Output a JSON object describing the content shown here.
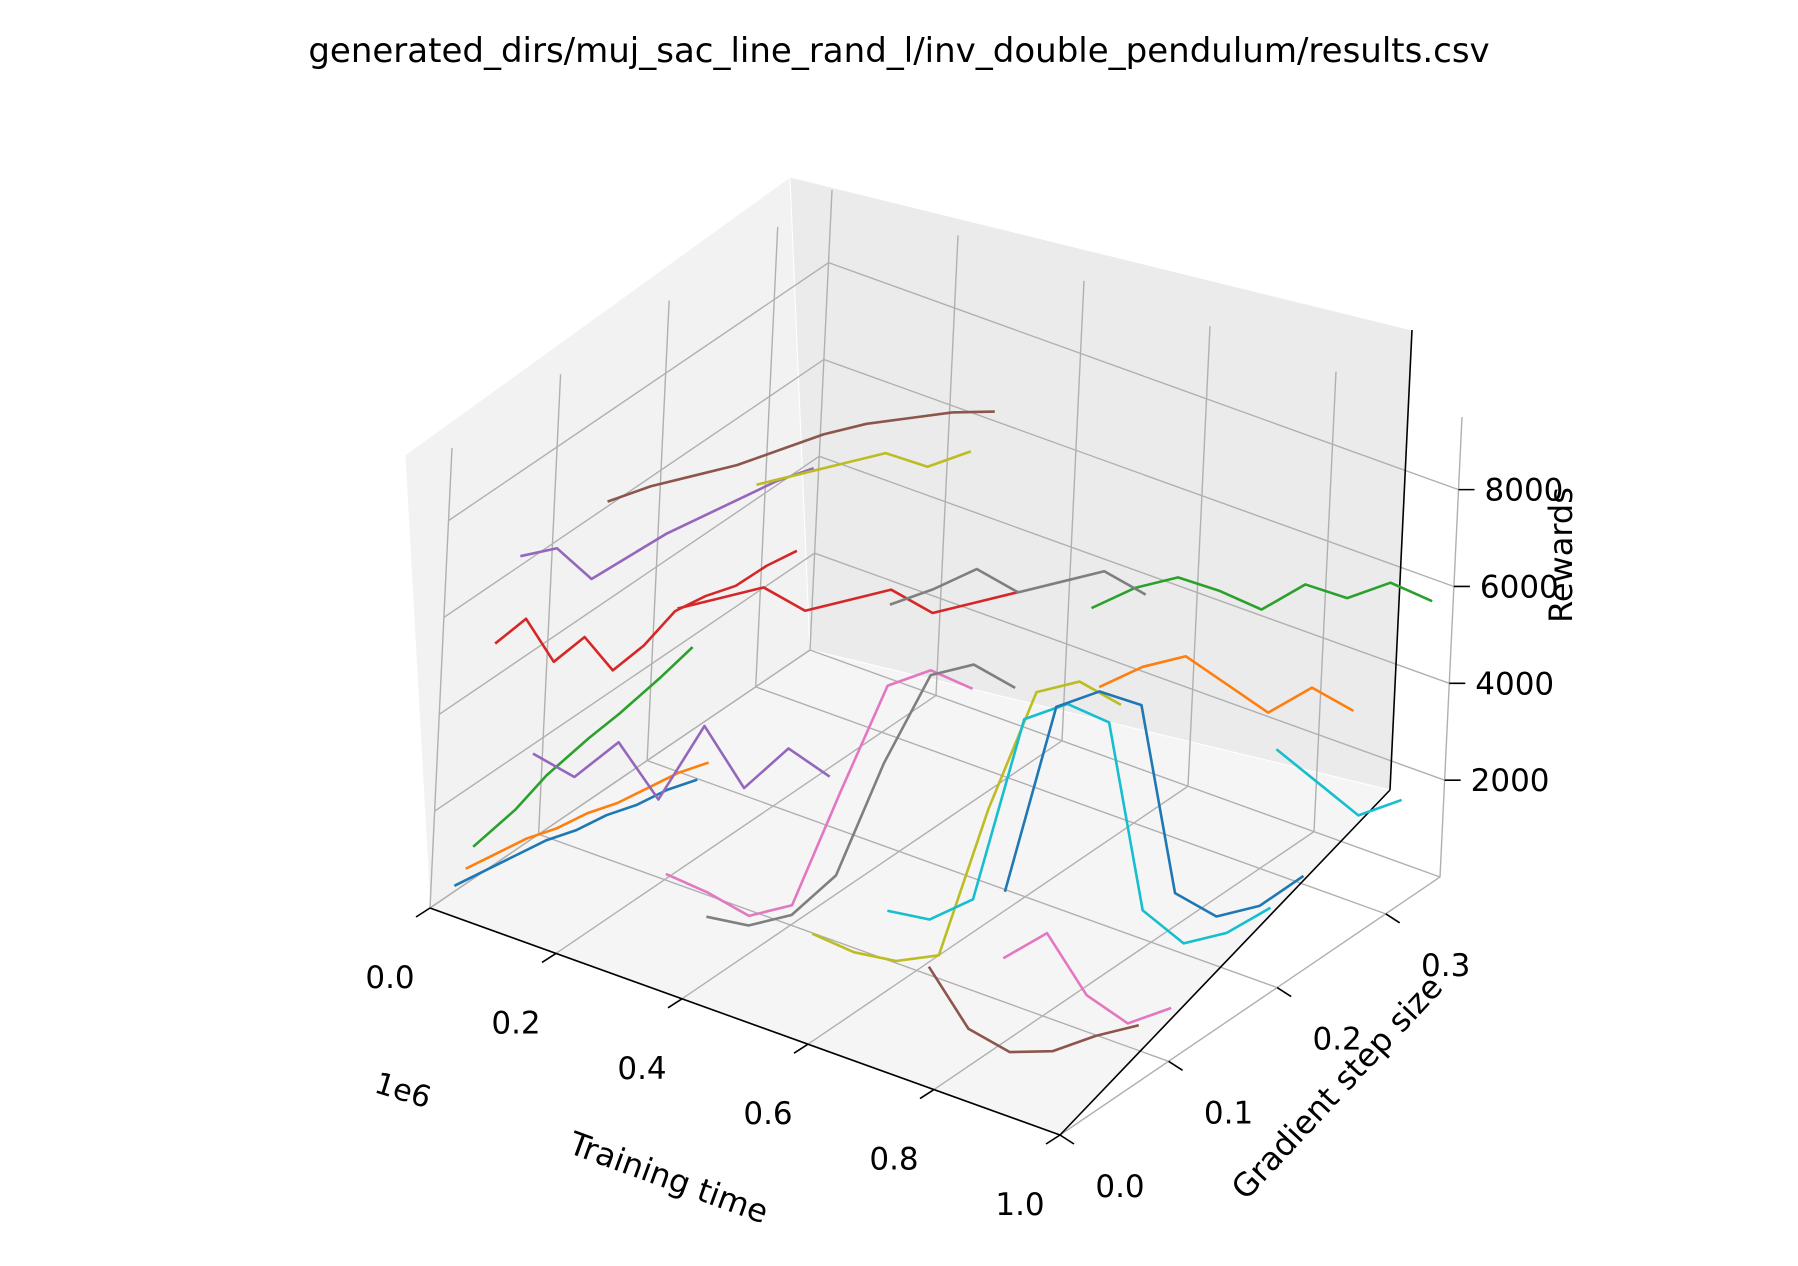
{
  "chart_data": {
    "type": "line3d",
    "title": "generated_dirs/muj_sac_line_rand_l/inv_double_pendulum/results.csv",
    "xlabel": "Training time",
    "ylabel": "Gradient step size",
    "zlabel": "Rewards",
    "x_offset_label": "1e6",
    "x_ticks": [
      "0.0",
      "0.2",
      "0.4",
      "0.6",
      "0.8",
      "1.0"
    ],
    "y_ticks": [
      "0.0",
      "0.1",
      "0.2",
      "0.3"
    ],
    "z_ticks": [
      "2000",
      "4000",
      "6000",
      "8000"
    ],
    "xlim": [
      0,
      1.0
    ],
    "ylim": [
      0,
      0.35
    ],
    "zlim": [
      0,
      9500
    ],
    "grid": true,
    "colors": [
      "#1f77b4",
      "#ff7f0e",
      "#2ca02c",
      "#d62728",
      "#9467bd",
      "#8c564b",
      "#e377c2",
      "#7f7f7f",
      "#bcbd22",
      "#17becf"
    ],
    "series": [
      {
        "name": "",
        "x": [
          0.02,
          0.05,
          0.08,
          0.11,
          0.14,
          0.17,
          0.2,
          0.23,
          0.26
        ],
        "y": [
          0.01,
          0.02,
          0.03,
          0.04,
          0.05,
          0.06,
          0.07,
          0.08,
          0.09
        ],
        "z": [
          400,
          700,
          1000,
          1300,
          1500,
          1800,
          2000,
          2300,
          2500
        ]
      },
      {
        "name": "",
        "x": [
          0.02,
          0.05,
          0.08,
          0.11,
          0.14,
          0.17,
          0.2,
          0.23,
          0.26
        ],
        "y": [
          0.02,
          0.03,
          0.04,
          0.05,
          0.06,
          0.07,
          0.08,
          0.09,
          0.1
        ],
        "z": [
          600,
          900,
          1200,
          1400,
          1700,
          1900,
          2200,
          2500,
          2700
        ]
      },
      {
        "name": "",
        "x": [
          0.03,
          0.06,
          0.09,
          0.12,
          0.15,
          0.18,
          0.21
        ],
        "y": [
          0.02,
          0.04,
          0.05,
          0.07,
          0.08,
          0.1,
          0.11
        ],
        "z": [
          1100,
          1700,
          2400,
          3000,
          3500,
          4100,
          4700
        ]
      },
      {
        "name": "",
        "x": [
          0.0,
          0.03,
          0.06,
          0.09,
          0.12,
          0.15,
          0.18,
          0.21,
          0.24,
          0.27,
          0.3
        ],
        "y": [
          0.05,
          0.06,
          0.07,
          0.08,
          0.09,
          0.1,
          0.11,
          0.12,
          0.13,
          0.14,
          0.15
        ],
        "z": [
          4700,
          5200,
          4300,
          4800,
          4100,
          4600,
          5300,
          5600,
          5800,
          6200,
          6500
        ]
      },
      {
        "name": "",
        "x": [
          0.0,
          0.04,
          0.08,
          0.12,
          0.16,
          0.2,
          0.24,
          0.28,
          0.32
        ],
        "y": [
          0.07,
          0.08,
          0.09,
          0.1,
          0.11,
          0.12,
          0.13,
          0.14,
          0.15
        ],
        "z": [
          6200,
          6400,
          5800,
          6300,
          6800,
          7200,
          7600,
          8000,
          8300
        ]
      },
      {
        "name": "",
        "x": [
          0.05,
          0.1,
          0.15,
          0.2,
          0.25,
          0.3,
          0.35,
          0.4,
          0.45,
          0.5
        ],
        "y": [
          0.12,
          0.13,
          0.14,
          0.15,
          0.16,
          0.17,
          0.18,
          0.19,
          0.2,
          0.21
        ],
        "z": [
          6800,
          7200,
          7500,
          7800,
          8200,
          8600,
          8900,
          9100,
          9300,
          9400
        ]
      },
      {
        "name": "",
        "x": [
          0.3,
          0.35,
          0.4,
          0.45,
          0.5,
          0.55,
          0.6,
          0.65
        ],
        "y": [
          0.04,
          0.05,
          0.06,
          0.07,
          0.08,
          0.09,
          0.1,
          0.11
        ],
        "z": [
          1500,
          1200,
          800,
          1100,
          3500,
          5800,
          6200,
          5900
        ]
      },
      {
        "name": "",
        "x": [
          0.35,
          0.4,
          0.45,
          0.5,
          0.55,
          0.6,
          0.65,
          0.7
        ],
        "y": [
          0.05,
          0.06,
          0.07,
          0.08,
          0.09,
          0.1,
          0.11,
          0.12
        ],
        "z": [
          700,
          600,
          900,
          1800,
          4200,
          6100,
          6400,
          6000
        ]
      },
      {
        "name": "",
        "x": [
          0.5,
          0.55,
          0.6,
          0.65,
          0.7,
          0.75,
          0.8,
          0.85
        ],
        "y": [
          0.06,
          0.07,
          0.08,
          0.09,
          0.1,
          0.11,
          0.12,
          0.13
        ],
        "z": [
          900,
          600,
          500,
          700,
          3800,
          6300,
          6600,
          6200
        ]
      },
      {
        "name": "",
        "x": [
          0.55,
          0.6,
          0.65,
          0.7,
          0.75,
          0.8,
          0.85,
          0.9,
          0.95,
          1.0
        ],
        "y": [
          0.1,
          0.11,
          0.12,
          0.13,
          0.14,
          0.15,
          0.16,
          0.17,
          0.18,
          0.19
        ],
        "z": [
          1000,
          900,
          1400,
          5200,
          5600,
          5300,
          1500,
          900,
          1200,
          1800
        ]
      },
      {
        "name": "",
        "x": [
          0.65,
          0.7,
          0.75,
          0.8,
          0.85,
          0.9,
          0.95,
          1.0
        ],
        "y": [
          0.15,
          0.16,
          0.17,
          0.18,
          0.19,
          0.2,
          0.21,
          0.22
        ],
        "z": [
          1100,
          5000,
          5400,
          5200,
          1400,
          1000,
          1300,
          2000
        ]
      },
      {
        "name": "",
        "x": [
          0.7,
          0.75,
          0.8,
          0.85,
          0.9,
          0.95,
          1.0
        ],
        "y": [
          0.2,
          0.21,
          0.22,
          0.23,
          0.24,
          0.25,
          0.26
        ],
        "z": [
          4800,
          5300,
          5600,
          5100,
          4600,
          5200,
          4800
        ]
      },
      {
        "name": "",
        "x": [
          0.6,
          0.65,
          0.7,
          0.75,
          0.8,
          0.85,
          0.9,
          0.95,
          1.0
        ],
        "y": [
          0.25,
          0.26,
          0.27,
          0.28,
          0.29,
          0.3,
          0.31,
          0.32,
          0.33
        ],
        "z": [
          5200,
          5700,
          6000,
          5800,
          5500,
          6100,
          5900,
          6300,
          6000
        ]
      },
      {
        "name": "",
        "x": [
          0.2,
          0.25,
          0.3,
          0.35,
          0.4,
          0.45,
          0.5,
          0.55,
          0.6
        ],
        "y": [
          0.1,
          0.11,
          0.12,
          0.13,
          0.14,
          0.15,
          0.16,
          0.17,
          0.18
        ],
        "z": [
          5600,
          5900,
          6200,
          5800,
          6100,
          6400,
          6000,
          6300,
          6600
        ]
      },
      {
        "name": "",
        "x": [
          0.1,
          0.15,
          0.2,
          0.25,
          0.3,
          0.35,
          0.4,
          0.45
        ],
        "y": [
          0.03,
          0.04,
          0.05,
          0.06,
          0.07,
          0.08,
          0.09,
          0.1
        ],
        "z": [
          3200,
          2800,
          3600,
          2500,
          4100,
          2900,
          3800,
          3300
        ]
      },
      {
        "name": "",
        "x": [
          0.75,
          0.8,
          0.85,
          0.9,
          0.95,
          1.0
        ],
        "y": [
          0.02,
          0.03,
          0.04,
          0.05,
          0.06,
          0.07
        ],
        "z": [
          2000,
          800,
          400,
          500,
          900,
          1200
        ]
      },
      {
        "name": "",
        "x": [
          0.8,
          0.85,
          0.9,
          0.95,
          1.0
        ],
        "y": [
          0.06,
          0.07,
          0.08,
          0.09,
          0.1
        ],
        "z": [
          1800,
          2400,
          1200,
          700,
          1100
        ]
      },
      {
        "name": "",
        "x": [
          0.4,
          0.45,
          0.5,
          0.55,
          0.6,
          0.65,
          0.7
        ],
        "y": [
          0.18,
          0.19,
          0.2,
          0.21,
          0.22,
          0.23,
          0.24
        ],
        "z": [
          5400,
          5800,
          6300,
          5900,
          6200,
          6500,
          6100
        ]
      },
      {
        "name": "",
        "x": [
          0.15,
          0.2,
          0.25,
          0.3,
          0.35,
          0.4
        ],
        "y": [
          0.2,
          0.21,
          0.22,
          0.23,
          0.24,
          0.25
        ],
        "z": [
          6400,
          6700,
          7000,
          7300,
          7100,
          7500
        ]
      },
      {
        "name": "",
        "x": [
          0.85,
          0.9,
          0.95,
          1.0
        ],
        "y": [
          0.28,
          0.29,
          0.3,
          0.31
        ],
        "z": [
          3000,
          2400,
          1800,
          2200
        ]
      }
    ]
  }
}
